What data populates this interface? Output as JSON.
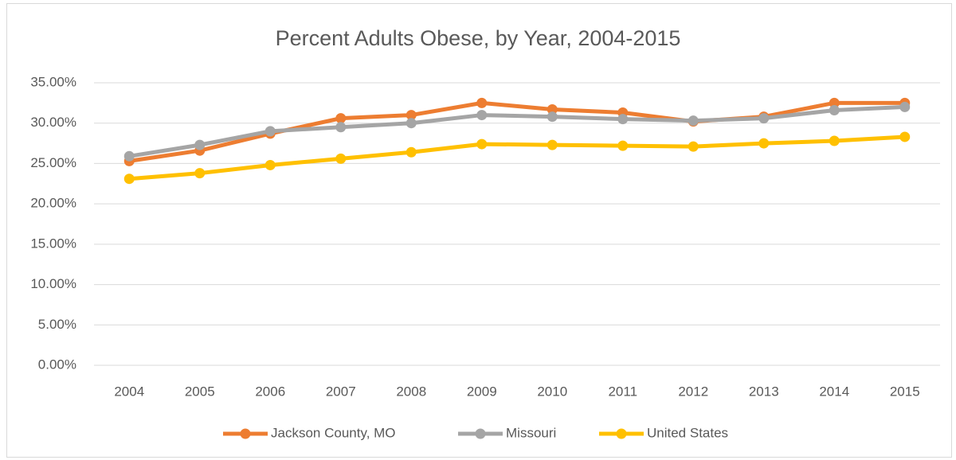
{
  "chart_data": {
    "type": "line",
    "title": "Percent Adults Obese, by Year, 2004-2015",
    "categories": [
      "2004",
      "2005",
      "2006",
      "2007",
      "2008",
      "2009",
      "2010",
      "2011",
      "2012",
      "2013",
      "2014",
      "2015"
    ],
    "series": [
      {
        "name": "Jackson County, MO",
        "color": "#ed7d31",
        "values": [
          25.3,
          26.6,
          28.7,
          30.6,
          31.0,
          32.5,
          31.7,
          31.3,
          30.2,
          30.8,
          32.5,
          32.5
        ]
      },
      {
        "name": "Missouri",
        "color": "#a5a5a5",
        "values": [
          25.9,
          27.3,
          29.0,
          29.5,
          30.0,
          31.0,
          30.8,
          30.5,
          30.3,
          30.6,
          31.6,
          32.0
        ]
      },
      {
        "name": "United States",
        "color": "#ffc000",
        "values": [
          23.1,
          23.8,
          24.8,
          25.6,
          26.4,
          27.4,
          27.3,
          27.2,
          27.1,
          27.5,
          27.8,
          28.3
        ]
      }
    ],
    "ylim": [
      0,
      35
    ],
    "yticks": [
      {
        "value": 0,
        "label": "0.00%"
      },
      {
        "value": 5,
        "label": "5.00%"
      },
      {
        "value": 10,
        "label": "10.00%"
      },
      {
        "value": 15,
        "label": "15.00%"
      },
      {
        "value": 20,
        "label": "20.00%"
      },
      {
        "value": 25,
        "label": "25.00%"
      },
      {
        "value": 30,
        "label": "30.00%"
      },
      {
        "value": 35,
        "label": "35.00%"
      }
    ],
    "grid": true,
    "legend": "bottom"
  }
}
